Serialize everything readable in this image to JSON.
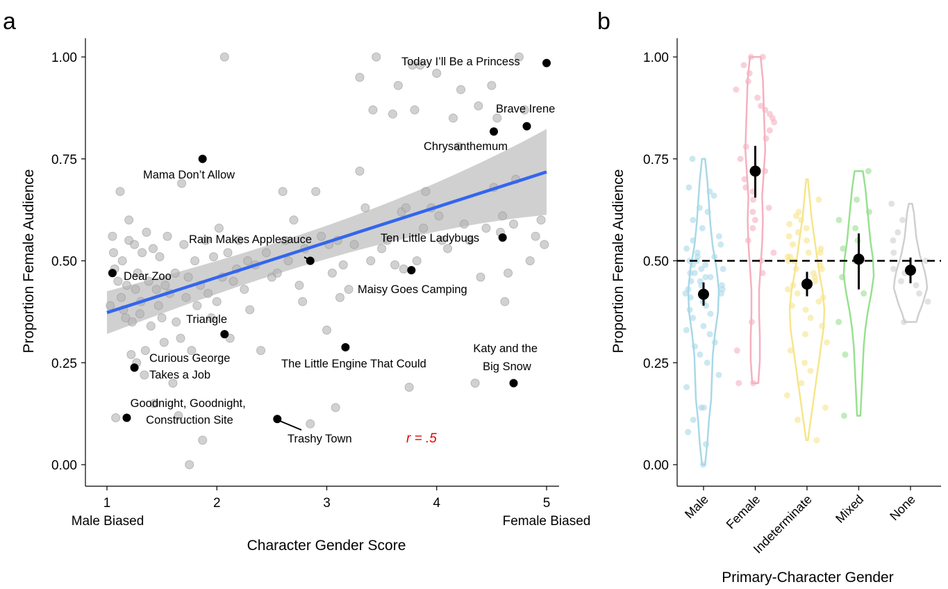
{
  "colors": {
    "scatter_point": "#b3b3b3",
    "highlight_point": "#000000",
    "fit_line": "#3366ee",
    "confidence_band": "#c8c8c8",
    "r_label": "#ee0000",
    "male": "#a8d8e8",
    "female": "#f5b0c0",
    "indeterminate": "#f7e58a",
    "mixed": "#98e090",
    "none": "#cfcfcf"
  },
  "chart_data": [
    {
      "panel_label": "a",
      "type": "scatter",
      "xlabel": "Character Gender Score",
      "ylabel": "Proportion Female Audience",
      "x_ticks": [
        "1",
        "2",
        "3",
        "4",
        "5"
      ],
      "y_ticks": [
        "0.00",
        "0.25",
        "0.50",
        "0.75",
        "1.00"
      ],
      "x_end_labels": [
        "Male Biased",
        "Female Biased"
      ],
      "xlim": [
        0.8,
        5.2
      ],
      "ylim": [
        -0.04,
        1.06
      ],
      "grid": false,
      "regression": {
        "x": [
          1.0,
          5.0
        ],
        "y": [
          0.373,
          0.718
        ],
        "band_lower": [
          0.335,
          0.655
        ],
        "band_upper": [
          0.412,
          0.772
        ]
      },
      "annotation": "r = .5",
      "labeled_points": [
        {
          "label": "Today I’ll Be a Princess",
          "x": 5.0,
          "y": 0.985
        },
        {
          "label": "Brave Irene",
          "x": 4.82,
          "y": 0.83
        },
        {
          "label": "Chrysanthemum",
          "x": 4.52,
          "y": 0.817
        },
        {
          "label": "Mama Don’t Allow",
          "x": 1.87,
          "y": 0.75
        },
        {
          "label": "Rain Makes Applesauce",
          "x": 2.85,
          "y": 0.5
        },
        {
          "label": "Ten Little Ladybugs",
          "x": 4.6,
          "y": 0.557
        },
        {
          "label": "Dear Zoo",
          "x": 1.05,
          "y": 0.47
        },
        {
          "label": "Maisy Goes Camping",
          "x": 3.77,
          "y": 0.477
        },
        {
          "label": "Triangle",
          "x": 2.07,
          "y": 0.32
        },
        {
          "label": "The Little Engine That Could",
          "x": 3.17,
          "y": 0.288
        },
        {
          "label": "Curious George Takes a Job",
          "x": 1.25,
          "y": 0.238
        },
        {
          "label": "Katy and the Big Snow",
          "x": 4.7,
          "y": 0.2
        },
        {
          "label": "Goodnight, Goodnight, Construction Site",
          "x": 1.18,
          "y": 0.115
        },
        {
          "label": "Trashy Town",
          "x": 2.55,
          "y": 0.112
        }
      ],
      "points": [
        [
          1.03,
          0.39
        ],
        [
          1.05,
          0.56
        ],
        [
          1.06,
          0.52
        ],
        [
          1.07,
          0.48
        ],
        [
          1.08,
          0.115
        ],
        [
          1.1,
          0.45
        ],
        [
          1.12,
          0.67
        ],
        [
          1.13,
          0.41
        ],
        [
          1.14,
          0.5
        ],
        [
          1.15,
          0.38
        ],
        [
          1.17,
          0.36
        ],
        [
          1.18,
          0.44
        ],
        [
          1.2,
          0.6
        ],
        [
          1.2,
          0.55
        ],
        [
          1.22,
          0.27
        ],
        [
          1.23,
          0.35
        ],
        [
          1.25,
          0.54
        ],
        [
          1.26,
          0.43
        ],
        [
          1.27,
          0.25
        ],
        [
          1.28,
          0.47
        ],
        [
          1.3,
          0.37
        ],
        [
          1.31,
          0.4
        ],
        [
          1.32,
          0.52
        ],
        [
          1.34,
          0.22
        ],
        [
          1.35,
          0.28
        ],
        [
          1.36,
          0.57
        ],
        [
          1.38,
          0.45
        ],
        [
          1.4,
          0.34
        ],
        [
          1.42,
          0.53
        ],
        [
          1.43,
          0.15
        ],
        [
          1.45,
          0.43
        ],
        [
          1.47,
          0.39
        ],
        [
          1.48,
          0.51
        ],
        [
          1.5,
          0.36
        ],
        [
          1.52,
          0.3
        ],
        [
          1.53,
          0.44
        ],
        [
          1.55,
          0.56
        ],
        [
          1.57,
          0.42
        ],
        [
          1.6,
          0.2
        ],
        [
          1.62,
          0.47
        ],
        [
          1.63,
          0.35
        ],
        [
          1.65,
          0.12
        ],
        [
          1.67,
          0.31
        ],
        [
          1.68,
          0.69
        ],
        [
          1.7,
          0.54
        ],
        [
          1.72,
          0.41
        ],
        [
          1.74,
          0.46
        ],
        [
          1.75,
          0.0
        ],
        [
          1.77,
          0.28
        ],
        [
          1.8,
          0.5
        ],
        [
          1.82,
          0.39
        ],
        [
          1.85,
          0.44
        ],
        [
          1.87,
          0.06
        ],
        [
          1.9,
          0.55
        ],
        [
          1.92,
          0.42
        ],
        [
          1.95,
          0.36
        ],
        [
          1.97,
          0.51
        ],
        [
          2.0,
          0.4
        ],
        [
          2.02,
          0.58
        ],
        [
          2.05,
          0.46
        ],
        [
          2.07,
          1.0
        ],
        [
          2.1,
          0.52
        ],
        [
          2.12,
          0.31
        ],
        [
          2.15,
          0.45
        ],
        [
          2.18,
          0.48
        ],
        [
          2.2,
          0.55
        ],
        [
          2.25,
          0.43
        ],
        [
          2.28,
          0.5
        ],
        [
          2.3,
          0.38
        ],
        [
          2.35,
          0.49
        ],
        [
          2.4,
          0.28
        ],
        [
          2.45,
          0.52
        ],
        [
          2.5,
          0.46
        ],
        [
          2.55,
          0.47
        ],
        [
          2.6,
          0.67
        ],
        [
          2.62,
          0.55
        ],
        [
          2.65,
          0.5
        ],
        [
          2.7,
          0.6
        ],
        [
          2.75,
          0.44
        ],
        [
          2.78,
          0.4
        ],
        [
          2.8,
          0.53
        ],
        [
          2.85,
          0.1
        ],
        [
          2.9,
          0.67
        ],
        [
          2.95,
          0.56
        ],
        [
          3.0,
          0.33
        ],
        [
          3.02,
          0.54
        ],
        [
          3.05,
          0.47
        ],
        [
          3.08,
          0.14
        ],
        [
          3.1,
          0.55
        ],
        [
          3.12,
          0.41
        ],
        [
          3.15,
          0.49
        ],
        [
          3.2,
          0.43
        ],
        [
          3.25,
          0.54
        ],
        [
          3.3,
          0.72
        ],
        [
          3.3,
          0.95
        ],
        [
          3.35,
          0.63
        ],
        [
          3.4,
          0.5
        ],
        [
          3.42,
          0.87
        ],
        [
          3.45,
          1.0
        ],
        [
          3.5,
          0.53
        ],
        [
          3.55,
          0.55
        ],
        [
          3.6,
          0.86
        ],
        [
          3.62,
          0.49
        ],
        [
          3.65,
          0.93
        ],
        [
          3.68,
          0.62
        ],
        [
          3.7,
          0.48
        ],
        [
          3.72,
          0.63
        ],
        [
          3.75,
          0.19
        ],
        [
          3.78,
          0.98
        ],
        [
          3.8,
          0.87
        ],
        [
          3.82,
          0.5
        ],
        [
          3.85,
          0.98
        ],
        [
          3.88,
          0.58
        ],
        [
          3.9,
          0.67
        ],
        [
          3.95,
          0.63
        ],
        [
          4.0,
          0.96
        ],
        [
          4.02,
          0.61
        ],
        [
          4.05,
          0.55
        ],
        [
          4.1,
          0.53
        ],
        [
          4.15,
          0.85
        ],
        [
          4.2,
          0.78
        ],
        [
          4.22,
          0.92
        ],
        [
          4.25,
          0.59
        ],
        [
          4.3,
          0.55
        ],
        [
          4.35,
          0.2
        ],
        [
          4.38,
          0.88
        ],
        [
          4.4,
          0.46
        ],
        [
          4.45,
          0.58
        ],
        [
          4.5,
          0.93
        ],
        [
          4.52,
          0.68
        ],
        [
          4.55,
          0.85
        ],
        [
          4.58,
          0.57
        ],
        [
          4.6,
          0.61
        ],
        [
          4.62,
          0.4
        ],
        [
          4.65,
          0.47
        ],
        [
          4.7,
          0.59
        ],
        [
          4.72,
          0.7
        ],
        [
          4.75,
          1.0
        ],
        [
          4.8,
          0.87
        ],
        [
          4.85,
          0.5
        ],
        [
          4.9,
          0.56
        ],
        [
          4.95,
          0.6
        ],
        [
          4.98,
          0.54
        ]
      ]
    },
    {
      "panel_label": "b",
      "type": "violin",
      "xlabel": "Primary-Character Gender",
      "ylabel": "Proportion Female Audience",
      "categories": [
        "Male",
        "Female",
        "Indeterminate",
        "Mixed",
        "None"
      ],
      "y_ticks": [
        "0.00",
        "0.25",
        "0.50",
        "0.75",
        "1.00"
      ],
      "ylim": [
        -0.04,
        1.06
      ],
      "reference_line": 0.5,
      "means": [
        0.418,
        0.72,
        0.443,
        0.504,
        0.477
      ],
      "ci_lower": [
        0.39,
        0.655,
        0.413,
        0.43,
        0.445
      ],
      "ci_upper": [
        0.447,
        0.782,
        0.473,
        0.567,
        0.508
      ],
      "violin_range": [
        [
          0.0,
          0.75
        ],
        [
          0.2,
          1.0
        ],
        [
          0.06,
          0.7
        ],
        [
          0.12,
          0.72
        ],
        [
          0.35,
          0.64
        ]
      ],
      "violin_halfwidth": [
        [
          0.1,
          0.25,
          0.35,
          0.5,
          0.55,
          0.6,
          0.75,
          0.95,
          1.0,
          0.85,
          0.6,
          0.45,
          0.35,
          0.25,
          0.1
        ],
        [
          0.2,
          0.3,
          0.3,
          0.25,
          0.25,
          0.35,
          0.45,
          0.5,
          0.45,
          0.55,
          0.65,
          0.6,
          0.55,
          0.5,
          0.35
        ],
        [
          0.05,
          0.2,
          0.35,
          0.5,
          0.65,
          0.8,
          0.95,
          1.0,
          0.9,
          0.7,
          0.55,
          0.4,
          0.25,
          0.15,
          0.05
        ],
        [
          0.1,
          0.15,
          0.2,
          0.25,
          0.3,
          0.4,
          0.55,
          0.75,
          0.9,
          0.85,
          0.7,
          0.6,
          0.5,
          0.4,
          0.25
        ],
        [
          0.35,
          0.5,
          0.7,
          0.85,
          1.0,
          0.95,
          0.85,
          0.7,
          0.55,
          0.45,
          0.35,
          0.3,
          0.25,
          0.2,
          0.1
        ]
      ],
      "points": [
        [
          0.0,
          0.05,
          0.08,
          0.11,
          0.14,
          0.14,
          0.19,
          0.22,
          0.25,
          0.27,
          0.29,
          0.3,
          0.32,
          0.33,
          0.34,
          0.36,
          0.37,
          0.38,
          0.39,
          0.4,
          0.41,
          0.42,
          0.42,
          0.43,
          0.43,
          0.44,
          0.44,
          0.45,
          0.45,
          0.46,
          0.46,
          0.47,
          0.47,
          0.48,
          0.48,
          0.49,
          0.49,
          0.5,
          0.5,
          0.51,
          0.51,
          0.52,
          0.53,
          0.54,
          0.55,
          0.56,
          0.58,
          0.6,
          0.62,
          0.63,
          0.66,
          0.67,
          0.68,
          0.75
        ],
        [
          0.2,
          0.2,
          0.28,
          0.35,
          0.47,
          0.5,
          0.52,
          0.55,
          0.58,
          0.6,
          0.62,
          0.63,
          0.65,
          0.67,
          0.68,
          0.7,
          0.72,
          0.75,
          0.78,
          0.8,
          0.82,
          0.84,
          0.85,
          0.86,
          0.87,
          0.88,
          0.9,
          0.92,
          0.94,
          0.96,
          0.98,
          1.0,
          1.0
        ],
        [
          0.06,
          0.11,
          0.14,
          0.17,
          0.2,
          0.23,
          0.25,
          0.28,
          0.3,
          0.32,
          0.34,
          0.36,
          0.38,
          0.39,
          0.4,
          0.41,
          0.42,
          0.43,
          0.44,
          0.45,
          0.46,
          0.47,
          0.48,
          0.48,
          0.49,
          0.5,
          0.5,
          0.51,
          0.51,
          0.52,
          0.52,
          0.53,
          0.54,
          0.55,
          0.56,
          0.57,
          0.58,
          0.59,
          0.6,
          0.61,
          0.62,
          0.65
        ],
        [
          0.12,
          0.27,
          0.35,
          0.42,
          0.46,
          0.5,
          0.53,
          0.55,
          0.58,
          0.6,
          0.62,
          0.65,
          0.72
        ],
        [
          0.35,
          0.4,
          0.42,
          0.44,
          0.45,
          0.47,
          0.48,
          0.5,
          0.52,
          0.55,
          0.57,
          0.6,
          0.64
        ]
      ]
    }
  ]
}
